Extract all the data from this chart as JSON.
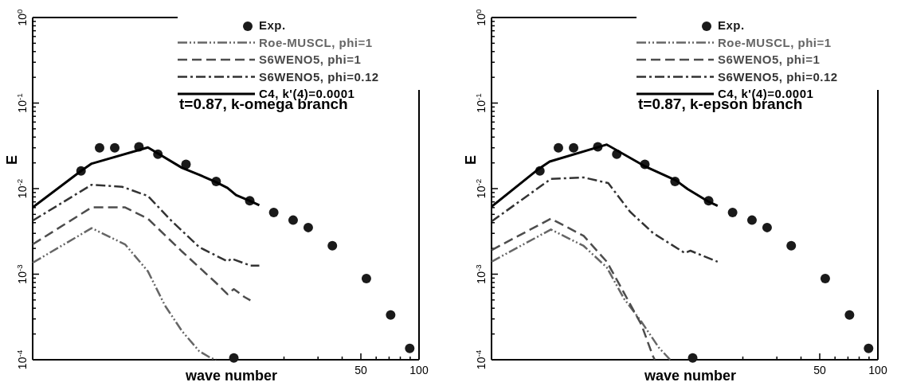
{
  "chart_data": [
    {
      "type": "line",
      "xlabel": "wave number",
      "ylabel": "E",
      "log": "xy",
      "legend": "top right",
      "xlim": [
        1,
        100
      ],
      "ylim": [
        0.0001,
        1
      ],
      "xticks": [
        {
          "value": 20,
          "label": null
        },
        {
          "value": 30,
          "label": null
        },
        {
          "value": 40,
          "label": null
        },
        {
          "value": 50,
          "label": "50"
        },
        {
          "value": 60,
          "label": null
        },
        {
          "value": 70,
          "label": null
        },
        {
          "value": 80,
          "label": null
        },
        {
          "value": 90,
          "label": null
        },
        {
          "value": 100,
          "label": "100"
        }
      ],
      "yticks": [
        {
          "value": 0.0001,
          "label": "10$^{-4}$"
        },
        {
          "value": 0.0002,
          "label": null
        },
        {
          "value": 0.0003,
          "label": null
        },
        {
          "value": 0.0004,
          "label": null
        },
        {
          "value": 0.0005,
          "label": null
        },
        {
          "value": 0.0006,
          "label": null
        },
        {
          "value": 0.0007,
          "label": null
        },
        {
          "value": 0.0008,
          "label": null
        },
        {
          "value": 0.0009,
          "label": null
        },
        {
          "value": 0.001,
          "label": "10$^{-3}$"
        },
        {
          "value": 0.002,
          "label": null
        },
        {
          "value": 0.003,
          "label": null
        },
        {
          "value": 0.004,
          "label": null
        },
        {
          "value": 0.005,
          "label": null
        },
        {
          "value": 0.006,
          "label": null
        },
        {
          "value": 0.007,
          "label": null
        },
        {
          "value": 0.008,
          "label": null
        },
        {
          "value": 0.009,
          "label": null
        },
        {
          "value": 0.01,
          "label": "10$^{-2}$"
        },
        {
          "value": 0.02,
          "label": null
        },
        {
          "value": 0.03,
          "label": null
        },
        {
          "value": 0.04,
          "label": null
        },
        {
          "value": 0.05,
          "label": null
        },
        {
          "value": 0.06,
          "label": null
        },
        {
          "value": 0.07,
          "label": null
        },
        {
          "value": 0.08,
          "label": null
        },
        {
          "value": 0.09,
          "label": null
        },
        {
          "value": 0.1,
          "label": "10$^{-1}$"
        },
        {
          "value": 0.2,
          "label": null
        },
        {
          "value": 0.3,
          "label": null
        },
        {
          "value": 0.4,
          "label": null
        },
        {
          "value": 0.5,
          "label": null
        },
        {
          "value": 0.6,
          "label": null
        },
        {
          "value": 0.7,
          "label": null
        },
        {
          "value": 0.8,
          "label": null
        },
        {
          "value": 0.9,
          "label": null
        },
        {
          "value": 1,
          "label": "10$^{0}$"
        }
      ],
      "annotations": [
        "t=0.87, k-omega branch"
      ],
      "series": [
        {
          "name": "Exp.",
          "type": "scatter",
          "marker": "circle",
          "color": "#1a1a1a",
          "x": [
            1.78,
            2.22,
            2.66,
            3.55,
            4.45,
            6.22,
            8.91,
            11.0,
            13.3,
            17.7,
            22.3,
            26.7,
            35.6,
            53.4,
            71.3,
            89.5
          ],
          "values": [
            0.0161,
            0.0299,
            0.0299,
            0.0308,
            0.0252,
            0.0192,
            0.0121,
            0.000105,
            0.0072,
            0.00526,
            0.00428,
            0.00351,
            0.00215,
            0.00089,
            0.000334,
            0.000136
          ]
        },
        {
          "name": "Roe-MUSCL, phi=1",
          "color": "#666666",
          "line_style": "dashdotdot",
          "x": [
            1,
            2.02,
            3.01,
            3.95,
            4.84,
            5.93,
            7.28,
            8.34,
            8.9
          ],
          "values": [
            0.00136,
            0.00345,
            0.00223,
            0.00108,
            0.00043,
            0.000216,
            0.000126,
            0.000105,
            0.0001
          ]
        },
        {
          "name": "S6WENO5, phi=1",
          "color": "#4d4d4d",
          "line_style": "dashed",
          "x": [
            1,
            2.02,
            3.01,
            3.95,
            5.93,
            8.91,
            10.2,
            11.0,
            12.5,
            13.4
          ],
          "values": [
            0.00223,
            0.00603,
            0.00603,
            0.00445,
            0.00184,
            0.00079,
            0.000583,
            0.00067,
            0.00054,
            0.000494
          ]
        },
        {
          "name": "S6WENO5, phi=0.12",
          "color": "#333333",
          "line_style": "dashdot",
          "x": [
            1,
            2.02,
            2.91,
            3.95,
            5.19,
            7.28,
            10.2,
            10.7,
            13.4,
            14.9
          ],
          "values": [
            0.00422,
            0.0111,
            0.0105,
            0.0082,
            0.00428,
            0.00207,
            0.00141,
            0.00152,
            0.00126,
            0.00126
          ]
        },
        {
          "name": "C4, k'(4)=0.0001",
          "color": "#000000",
          "line_style": "solid",
          "x": [
            1,
            1.78,
            2.02,
            3.95,
            5.93,
            7.28,
            8.91,
            10.2,
            11.3,
            13.3,
            14.9
          ],
          "values": [
            0.00603,
            0.0161,
            0.0196,
            0.0303,
            0.0175,
            0.0145,
            0.0119,
            0.0102,
            0.0084,
            0.0072,
            0.0064
          ]
        }
      ]
    },
    {
      "type": "line",
      "xlabel": "wave number",
      "ylabel": "E",
      "log": "xy",
      "legend": "top right",
      "xlim": [
        1,
        100
      ],
      "ylim": [
        0.0001,
        1
      ],
      "xticks": [
        {
          "value": 20,
          "label": null
        },
        {
          "value": 30,
          "label": null
        },
        {
          "value": 40,
          "label": null
        },
        {
          "value": 50,
          "label": "50"
        },
        {
          "value": 60,
          "label": null
        },
        {
          "value": 70,
          "label": null
        },
        {
          "value": 80,
          "label": null
        },
        {
          "value": 90,
          "label": null
        },
        {
          "value": 100,
          "label": "100"
        }
      ],
      "yticks": [
        {
          "value": 0.0001,
          "label": "10$^{-4}$"
        },
        {
          "value": 0.0002,
          "label": null
        },
        {
          "value": 0.0003,
          "label": null
        },
        {
          "value": 0.0004,
          "label": null
        },
        {
          "value": 0.0005,
          "label": null
        },
        {
          "value": 0.0006,
          "label": null
        },
        {
          "value": 0.0007,
          "label": null
        },
        {
          "value": 0.0008,
          "label": null
        },
        {
          "value": 0.0009,
          "label": null
        },
        {
          "value": 0.001,
          "label": "10$^{-3}$"
        },
        {
          "value": 0.002,
          "label": null
        },
        {
          "value": 0.003,
          "label": null
        },
        {
          "value": 0.004,
          "label": null
        },
        {
          "value": 0.005,
          "label": null
        },
        {
          "value": 0.006,
          "label": null
        },
        {
          "value": 0.007,
          "label": null
        },
        {
          "value": 0.008,
          "label": null
        },
        {
          "value": 0.009,
          "label": null
        },
        {
          "value": 0.01,
          "label": "10$^{-2}$"
        },
        {
          "value": 0.02,
          "label": null
        },
        {
          "value": 0.03,
          "label": null
        },
        {
          "value": 0.04,
          "label": null
        },
        {
          "value": 0.05,
          "label": null
        },
        {
          "value": 0.06,
          "label": null
        },
        {
          "value": 0.07,
          "label": null
        },
        {
          "value": 0.08,
          "label": null
        },
        {
          "value": 0.09,
          "label": null
        },
        {
          "value": 0.1,
          "label": "10$^{-1}$"
        },
        {
          "value": 0.2,
          "label": null
        },
        {
          "value": 0.3,
          "label": null
        },
        {
          "value": 0.4,
          "label": null
        },
        {
          "value": 0.5,
          "label": null
        },
        {
          "value": 0.6,
          "label": null
        },
        {
          "value": 0.7,
          "label": null
        },
        {
          "value": 0.8,
          "label": null
        },
        {
          "value": 0.9,
          "label": null
        },
        {
          "value": 1,
          "label": "10$^{0}$"
        }
      ],
      "annotations": [
        "t=0.87, k-epson branch"
      ],
      "series": [
        {
          "name": "Exp.",
          "type": "scatter",
          "marker": "circle",
          "color": "#1a1a1a",
          "x": [
            1.78,
            2.22,
            2.66,
            3.55,
            4.45,
            6.22,
            8.91,
            11.0,
            13.3,
            17.7,
            22.3,
            26.7,
            35.6,
            53.4,
            71.3,
            89.5
          ],
          "values": [
            0.0161,
            0.0299,
            0.0299,
            0.0308,
            0.0252,
            0.0192,
            0.0121,
            0.000105,
            0.0072,
            0.00526,
            0.00428,
            0.00351,
            0.00215,
            0.00089,
            0.000334,
            0.000136
          ]
        },
        {
          "name": "Roe-MUSCL, phi=1",
          "color": "#666666",
          "line_style": "dashdotdot",
          "x": [
            1,
            2.03,
            3.0,
            3.95,
            4.86,
            5.97,
            7.34,
            8.41
          ],
          "values": [
            0.0014,
            0.00333,
            0.00214,
            0.0012,
            0.000514,
            0.000278,
            0.000139,
            0.0001
          ]
        },
        {
          "name": "S6WENO5, phi=1",
          "color": "#4d4d4d",
          "line_style": "dashed",
          "x": [
            1,
            2.03,
            3.0,
            3.95,
            4.86,
            5.97,
            6.85,
            7.0
          ],
          "values": [
            0.00191,
            0.00446,
            0.0028,
            0.0014,
            0.0006,
            0.000257,
            0.00011,
            0.0001
          ]
        },
        {
          "name": "S6WENO5, phi=0.12",
          "color": "#333333",
          "line_style": "dashdot",
          "x": [
            1,
            2.03,
            3.0,
            4.02,
            5.2,
            6.85,
            10.0,
            10.7,
            14.8
          ],
          "values": [
            0.00413,
            0.013,
            0.0135,
            0.0116,
            0.0054,
            0.00303,
            0.00177,
            0.00188,
            0.0014
          ]
        },
        {
          "name": "C4, k'(4)=0.0001",
          "color": "#000000",
          "line_style": "solid",
          "x": [
            1,
            1.73,
            2.0,
            3.95,
            6.18,
            9.0,
            10.35,
            13.2,
            14.8
          ],
          "values": [
            0.00615,
            0.0166,
            0.0207,
            0.0327,
            0.0184,
            0.0125,
            0.0099,
            0.0071,
            0.0063
          ]
        }
      ]
    }
  ]
}
